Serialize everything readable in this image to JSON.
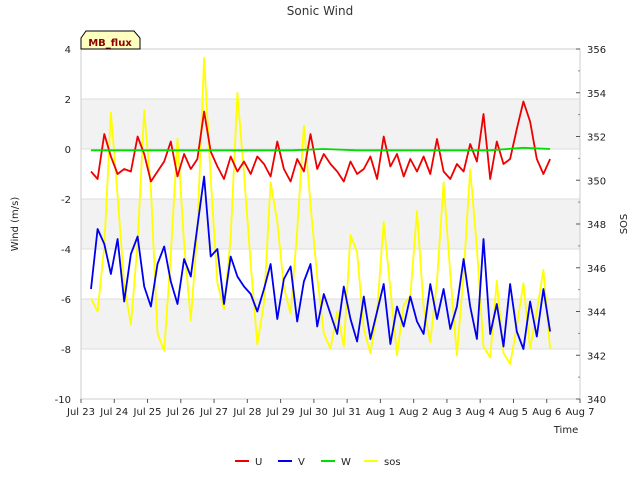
{
  "chart_data": {
    "type": "line",
    "title": "Sonic Wind",
    "badge": "MB_flux",
    "xlabel": "Time",
    "ylabel": "Wind (m/s)",
    "y2label": "SOS",
    "ylim": [
      -10,
      4
    ],
    "y2lim": [
      340,
      356
    ],
    "xlim": [
      0,
      15
    ],
    "x_ticks": [
      0,
      1,
      2,
      3,
      4,
      5,
      6,
      7,
      8,
      9,
      10,
      11,
      12,
      13,
      14,
      15
    ],
    "x_tick_labels": [
      "Jul 23",
      "Jul 24",
      "Jul 25",
      "Jul 26",
      "Jul 27",
      "Jul 28",
      "Jul 29",
      "Jul 30",
      "Jul 31",
      "Aug 1",
      "Aug 2",
      "Aug 3",
      "Aug 4",
      "Aug 5",
      "Aug 6",
      "Aug 7"
    ],
    "y_ticks": [
      -10,
      -8,
      -6,
      -4,
      -2,
      0,
      2,
      4
    ],
    "y2_ticks": [
      340,
      342,
      344,
      346,
      348,
      350,
      352,
      354,
      356
    ],
    "background_bands": [
      [
        -8,
        -6
      ],
      [
        -4,
        -2
      ],
      [
        0,
        2
      ]
    ],
    "legend_position": "bottom-center",
    "series": [
      {
        "name": "U",
        "color": "#ee0000",
        "axis": "left",
        "x": [
          0.3,
          0.5,
          0.7,
          0.9,
          1.1,
          1.3,
          1.5,
          1.7,
          1.9,
          2.1,
          2.3,
          2.5,
          2.7,
          2.9,
          3.1,
          3.3,
          3.5,
          3.7,
          3.9,
          4.1,
          4.3,
          4.5,
          4.7,
          4.9,
          5.1,
          5.3,
          5.5,
          5.7,
          5.9,
          6.1,
          6.3,
          6.5,
          6.7,
          6.9,
          7.1,
          7.3,
          7.5,
          7.7,
          7.9,
          8.1,
          8.3,
          8.5,
          8.7,
          8.9,
          9.1,
          9.3,
          9.5,
          9.7,
          9.9,
          10.1,
          10.3,
          10.5,
          10.7,
          10.9,
          11.1,
          11.3,
          11.5,
          11.7,
          11.9,
          12.1,
          12.3,
          12.5,
          12.7,
          12.9,
          13.1,
          13.3,
          13.5,
          13.7,
          13.9,
          14.1
        ],
        "values": [
          -0.9,
          -1.2,
          0.6,
          -0.3,
          -1.0,
          -0.8,
          -0.9,
          0.5,
          -0.2,
          -1.3,
          -0.9,
          -0.5,
          0.3,
          -1.1,
          -0.2,
          -0.8,
          -0.4,
          1.5,
          -0.1,
          -0.7,
          -1.2,
          -0.3,
          -0.9,
          -0.5,
          -1.0,
          -0.3,
          -0.6,
          -1.1,
          0.3,
          -0.8,
          -1.3,
          -0.4,
          -0.9,
          0.6,
          -0.8,
          -0.2,
          -0.6,
          -0.9,
          -1.3,
          -0.5,
          -1.0,
          -0.8,
          -0.3,
          -1.2,
          0.5,
          -0.7,
          -0.2,
          -1.1,
          -0.4,
          -0.9,
          -0.3,
          -1.0,
          0.4,
          -0.9,
          -1.2,
          -0.6,
          -0.9,
          0.2,
          -0.5,
          1.4,
          -1.2,
          0.3,
          -0.6,
          -0.4,
          0.8,
          1.9,
          1.1,
          -0.4,
          -1.0,
          -0.4
        ]
      },
      {
        "name": "V",
        "color": "#0000ee",
        "axis": "left",
        "x": [
          0.3,
          0.5,
          0.7,
          0.9,
          1.1,
          1.3,
          1.5,
          1.7,
          1.9,
          2.1,
          2.3,
          2.5,
          2.7,
          2.9,
          3.1,
          3.3,
          3.5,
          3.7,
          3.9,
          4.1,
          4.3,
          4.5,
          4.7,
          4.9,
          5.1,
          5.3,
          5.5,
          5.7,
          5.9,
          6.1,
          6.3,
          6.5,
          6.7,
          6.9,
          7.1,
          7.3,
          7.5,
          7.7,
          7.9,
          8.1,
          8.3,
          8.5,
          8.7,
          8.9,
          9.1,
          9.3,
          9.5,
          9.7,
          9.9,
          10.1,
          10.3,
          10.5,
          10.7,
          10.9,
          11.1,
          11.3,
          11.5,
          11.7,
          11.9,
          12.1,
          12.3,
          12.5,
          12.7,
          12.9,
          13.1,
          13.3,
          13.5,
          13.7,
          13.9,
          14.1
        ],
        "values": [
          -5.6,
          -3.2,
          -3.8,
          -5.0,
          -3.6,
          -6.1,
          -4.2,
          -3.5,
          -5.5,
          -6.3,
          -4.6,
          -3.9,
          -5.3,
          -6.2,
          -4.4,
          -5.1,
          -3.1,
          -1.1,
          -4.3,
          -4.0,
          -6.2,
          -4.3,
          -5.1,
          -5.5,
          -5.8,
          -6.5,
          -5.6,
          -4.6,
          -6.8,
          -5.2,
          -4.7,
          -6.9,
          -5.3,
          -4.6,
          -7.1,
          -5.8,
          -6.6,
          -7.4,
          -5.5,
          -6.8,
          -7.7,
          -5.9,
          -7.6,
          -6.5,
          -5.4,
          -7.8,
          -6.3,
          -7.1,
          -5.9,
          -6.9,
          -7.4,
          -5.4,
          -6.8,
          -5.6,
          -7.2,
          -6.3,
          -4.4,
          -6.3,
          -7.6,
          -3.6,
          -7.4,
          -6.2,
          -7.9,
          -5.4,
          -7.3,
          -8.0,
          -6.1,
          -7.5,
          -5.6,
          -7.3
        ]
      },
      {
        "name": "W",
        "color": "#00dd00",
        "axis": "left",
        "x": [
          0.3,
          1.3,
          2.3,
          3.3,
          4.3,
          5.3,
          6.3,
          7.3,
          8.3,
          9.3,
          10.3,
          11.3,
          12.3,
          13.3,
          14.1
        ],
        "values": [
          -0.05,
          -0.05,
          -0.05,
          -0.05,
          -0.05,
          -0.05,
          -0.05,
          0.0,
          -0.05,
          -0.05,
          -0.05,
          -0.05,
          -0.05,
          0.05,
          0.0
        ]
      },
      {
        "name": "sos",
        "color": "#ffff00",
        "axis": "right",
        "x": [
          0.3,
          0.5,
          0.7,
          0.9,
          1.1,
          1.3,
          1.5,
          1.7,
          1.9,
          2.1,
          2.3,
          2.5,
          2.7,
          2.9,
          3.1,
          3.3,
          3.5,
          3.7,
          3.9,
          4.1,
          4.3,
          4.5,
          4.7,
          4.9,
          5.1,
          5.3,
          5.5,
          5.7,
          5.9,
          6.1,
          6.3,
          6.5,
          6.7,
          6.9,
          7.1,
          7.3,
          7.5,
          7.7,
          7.9,
          8.1,
          8.3,
          8.5,
          8.7,
          8.9,
          9.1,
          9.3,
          9.5,
          9.7,
          9.9,
          10.1,
          10.3,
          10.5,
          10.7,
          10.9,
          11.1,
          11.3,
          11.5,
          11.7,
          11.9,
          12.1,
          12.3,
          12.5,
          12.7,
          12.9,
          13.1,
          13.3,
          13.5,
          13.7,
          13.9,
          14.1
        ],
        "values": [
          344.6,
          344.0,
          347.0,
          353.1,
          349.3,
          345.2,
          343.4,
          347.1,
          353.2,
          349.6,
          343.0,
          342.2,
          346.6,
          351.9,
          347.1,
          343.6,
          347.7,
          355.6,
          350.1,
          345.3,
          344.1,
          347.4,
          354.0,
          350.3,
          346.2,
          342.5,
          344.4,
          349.9,
          348.1,
          345.1,
          343.9,
          347.7,
          352.5,
          348.9,
          345.6,
          343.0,
          342.3,
          344.0,
          342.4,
          347.5,
          346.7,
          343.2,
          342.1,
          344.0,
          348.1,
          345.0,
          342.0,
          344.3,
          344.7,
          348.6,
          344.2,
          342.6,
          345.4,
          349.9,
          345.7,
          342.0,
          345.7,
          350.5,
          346.9,
          342.4,
          341.9,
          345.4,
          342.1,
          341.6,
          343.3,
          345.3,
          342.3,
          344.0,
          345.9,
          342.3
        ]
      }
    ]
  }
}
